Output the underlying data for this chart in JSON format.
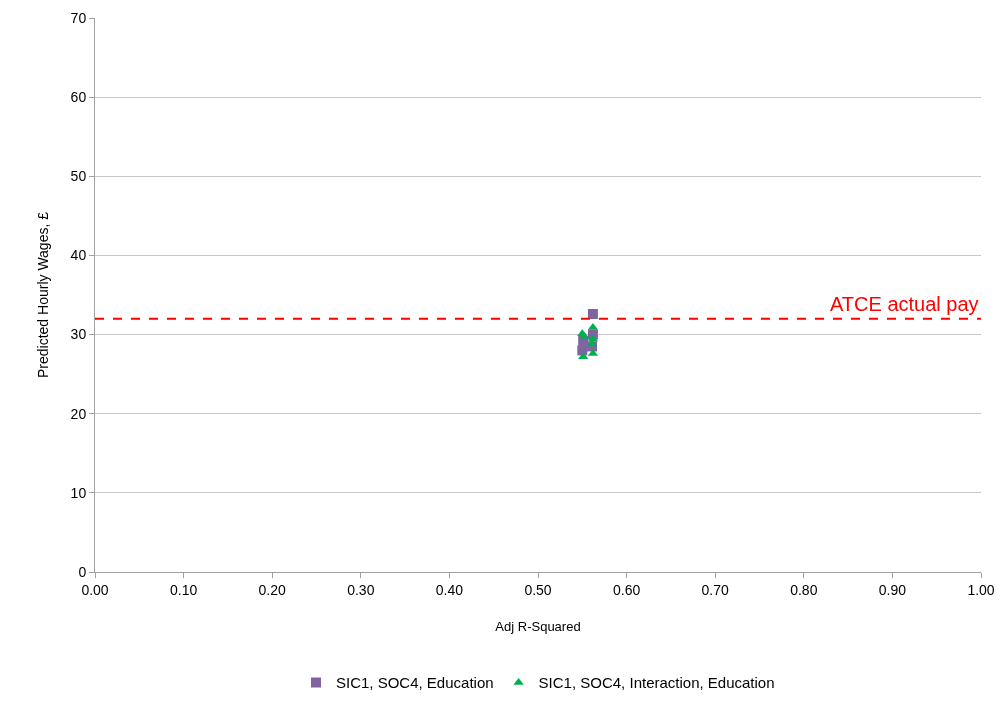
{
  "chart_data": {
    "type": "scatter",
    "xlabel": "Adj R-Squared",
    "ylabel": "Predicted Hourly Wages, £",
    "xlim": [
      0,
      1
    ],
    "xticks": [
      {
        "value": 0,
        "label": "0.00"
      },
      {
        "value": 0.1,
        "label": "0.10"
      },
      {
        "value": 0.2,
        "label": "0.20"
      },
      {
        "value": 0.3,
        "label": "0.30"
      },
      {
        "value": 0.4,
        "label": "0.40"
      },
      {
        "value": 0.5,
        "label": "0.50"
      },
      {
        "value": 0.6,
        "label": "0.60"
      },
      {
        "value": 0.7,
        "label": "0.70"
      },
      {
        "value": 0.8,
        "label": "0.80"
      },
      {
        "value": 0.9,
        "label": "0.90"
      },
      {
        "value": 1,
        "label": "1.00"
      }
    ],
    "ylim": [
      0,
      70
    ],
    "yticks": [
      0,
      10,
      20,
      30,
      40,
      50,
      60,
      70
    ],
    "grid": "y",
    "legend": "bottom",
    "series": [
      {
        "name": "SIC1, SOC4, Education",
        "color": "#8064a2",
        "marker": "square",
        "x": [
          0.55,
          0.551,
          0.562,
          0.562,
          0.561
        ],
        "values": [
          28.0,
          29.2,
          32.6,
          30.0,
          28.5
        ]
      },
      {
        "name": "SIC1, SOC4, Interaction, Education",
        "color": "#00b050",
        "marker": "triangle",
        "x": [
          0.55,
          0.551,
          0.552,
          0.562,
          0.562,
          0.562,
          0.561
        ],
        "values": [
          30.1,
          27.2,
          29.8,
          30.9,
          29.4,
          27.6,
          28.8
        ]
      }
    ],
    "ref_lines": [
      {
        "axis": "y",
        "value": 32,
        "label": "ATCE actual pay",
        "color": "#ff0000",
        "line_style": "dashed"
      }
    ]
  }
}
